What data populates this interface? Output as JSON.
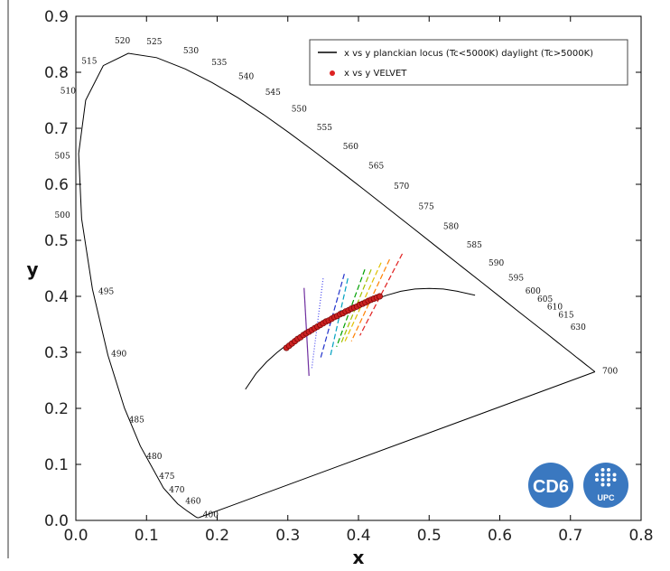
{
  "chart_data": {
    "type": "scatter",
    "xlabel": "x",
    "ylabel": "y",
    "xlim": [
      0.0,
      0.8
    ],
    "ylim": [
      0.0,
      0.9
    ],
    "x_ticks": [
      "0.0",
      "0.1",
      "0.2",
      "0.3",
      "0.4",
      "0.5",
      "0.6",
      "0.7",
      "0.8"
    ],
    "y_ticks": [
      "0.0",
      "0.1",
      "0.2",
      "0.3",
      "0.4",
      "0.5",
      "0.6",
      "0.7",
      "0.8",
      "0.9"
    ],
    "grid": false,
    "legend_position": "top-right",
    "series": [
      {
        "name": "x vs y planckian locus (Tc<5000K) daylight (Tc>5000K)",
        "style": "line",
        "color": "#000000",
        "x": [
          0.24,
          0.255,
          0.27,
          0.285,
          0.3,
          0.315,
          0.33,
          0.345,
          0.36,
          0.38,
          0.4,
          0.42,
          0.44,
          0.46,
          0.48,
          0.5,
          0.52,
          0.54,
          0.565
        ],
        "y": [
          0.234,
          0.262,
          0.283,
          0.3,
          0.315,
          0.328,
          0.34,
          0.351,
          0.361,
          0.372,
          0.383,
          0.393,
          0.402,
          0.409,
          0.413,
          0.414,
          0.413,
          0.409,
          0.402
        ]
      },
      {
        "name": "x vs y VELVET",
        "style": "scatter",
        "color": "#cc2222",
        "x": [
          0.298,
          0.302,
          0.306,
          0.31,
          0.314,
          0.318,
          0.322,
          0.326,
          0.33,
          0.334,
          0.338,
          0.342,
          0.346,
          0.35,
          0.354,
          0.358,
          0.362,
          0.366,
          0.37,
          0.374,
          0.378,
          0.382,
          0.386,
          0.39,
          0.394,
          0.398,
          0.402,
          0.406,
          0.41,
          0.414,
          0.418,
          0.422,
          0.426,
          0.43
        ],
        "y": [
          0.308,
          0.312,
          0.316,
          0.32,
          0.324,
          0.327,
          0.331,
          0.334,
          0.337,
          0.34,
          0.343,
          0.346,
          0.349,
          0.352,
          0.355,
          0.357,
          0.36,
          0.363,
          0.365,
          0.368,
          0.37,
          0.373,
          0.375,
          0.378,
          0.38,
          0.382,
          0.385,
          0.387,
          0.389,
          0.392,
          0.394,
          0.396,
          0.398,
          0.4
        ]
      }
    ],
    "spectral_locus": {
      "color": "#000000",
      "x": [
        0.1741,
        0.174,
        0.1738,
        0.1736,
        0.1733,
        0.1726,
        0.1714,
        0.1689,
        0.1644,
        0.1566,
        0.144,
        0.1241,
        0.0913,
        0.0687,
        0.0454,
        0.0235,
        0.0082,
        0.0039,
        0.0139,
        0.0389,
        0.0743,
        0.1142,
        0.1547,
        0.1929,
        0.2296,
        0.2658,
        0.3016,
        0.3373,
        0.3731,
        0.4087,
        0.4441,
        0.4788,
        0.5125,
        0.5448,
        0.5752,
        0.6029,
        0.627,
        0.6482,
        0.6658,
        0.6801,
        0.6915,
        0.7006,
        0.7079,
        0.714,
        0.719,
        0.723,
        0.726,
        0.7283,
        0.73,
        0.7347
      ],
      "y": [
        0.005,
        0.005,
        0.0049,
        0.0049,
        0.0048,
        0.0048,
        0.0051,
        0.0069,
        0.0109,
        0.0177,
        0.0297,
        0.0578,
        0.1327,
        0.2007,
        0.295,
        0.4127,
        0.5384,
        0.6548,
        0.7502,
        0.812,
        0.8338,
        0.8262,
        0.8059,
        0.7816,
        0.7543,
        0.7243,
        0.6923,
        0.6589,
        0.6245,
        0.5896,
        0.5547,
        0.5202,
        0.4866,
        0.4544,
        0.4242,
        0.3965,
        0.3725,
        0.3514,
        0.334,
        0.3197,
        0.3083,
        0.2993,
        0.292,
        0.2859,
        0.2809,
        0.277,
        0.274,
        0.2717,
        0.27,
        0.2653
      ]
    },
    "purple_line": {
      "x": [
        0.1741,
        0.7347
      ],
      "y": [
        0.005,
        0.2653
      ]
    },
    "wavelength_labels": [
      {
        "text": "400",
        "x": 0.18,
        "y": 0.006
      },
      {
        "text": "460",
        "x": 0.155,
        "y": 0.03
      },
      {
        "text": "470",
        "x": 0.132,
        "y": 0.05
      },
      {
        "text": "475",
        "x": 0.118,
        "y": 0.074
      },
      {
        "text": "480",
        "x": 0.1,
        "y": 0.11
      },
      {
        "text": "485",
        "x": 0.075,
        "y": 0.175
      },
      {
        "text": "490",
        "x": 0.05,
        "y": 0.293
      },
      {
        "text": "495",
        "x": 0.032,
        "y": 0.404
      },
      {
        "text": "500",
        "x": -0.03,
        "y": 0.54
      },
      {
        "text": "505",
        "x": -0.03,
        "y": 0.646
      },
      {
        "text": "510",
        "x": -0.022,
        "y": 0.762
      },
      {
        "text": "515",
        "x": 0.008,
        "y": 0.815
      },
      {
        "text": "520",
        "x": 0.055,
        "y": 0.852
      },
      {
        "text": "525",
        "x": 0.1,
        "y": 0.85
      },
      {
        "text": "530",
        "x": 0.152,
        "y": 0.834
      },
      {
        "text": "535",
        "x": 0.192,
        "y": 0.813
      },
      {
        "text": "540",
        "x": 0.23,
        "y": 0.788
      },
      {
        "text": "545",
        "x": 0.268,
        "y": 0.76
      },
      {
        "text": "550",
        "x": 0.305,
        "y": 0.73
      },
      {
        "text": "555",
        "x": 0.341,
        "y": 0.697
      },
      {
        "text": "560",
        "x": 0.378,
        "y": 0.663
      },
      {
        "text": "565",
        "x": 0.414,
        "y": 0.628
      },
      {
        "text": "570",
        "x": 0.45,
        "y": 0.592
      },
      {
        "text": "575",
        "x": 0.485,
        "y": 0.556
      },
      {
        "text": "580",
        "x": 0.52,
        "y": 0.52
      },
      {
        "text": "585",
        "x": 0.553,
        "y": 0.487
      },
      {
        "text": "590",
        "x": 0.584,
        "y": 0.455
      },
      {
        "text": "595",
        "x": 0.612,
        "y": 0.428
      },
      {
        "text": "600",
        "x": 0.636,
        "y": 0.405
      },
      {
        "text": "605",
        "x": 0.653,
        "y": 0.39
      },
      {
        "text": "610",
        "x": 0.667,
        "y": 0.377
      },
      {
        "text": "615",
        "x": 0.683,
        "y": 0.362
      },
      {
        "text": "630",
        "x": 0.7,
        "y": 0.34
      },
      {
        "text": "700",
        "x": 0.745,
        "y": 0.262
      }
    ],
    "isotemperature_lines": [
      {
        "color": "#7030a0",
        "dash": "",
        "x": [
          0.323,
          0.33
        ],
        "y": [
          0.415,
          0.258
        ]
      },
      {
        "color": "#4444ee",
        "dash": "1,2",
        "x": [
          0.35,
          0.334
        ],
        "y": [
          0.432,
          0.272
        ]
      },
      {
        "color": "#2233cc",
        "dash": "6,3",
        "x": [
          0.38,
          0.346
        ],
        "y": [
          0.44,
          0.288
        ]
      },
      {
        "color": "#00a0c0",
        "dash": "6,3",
        "x": [
          0.385,
          0.36
        ],
        "y": [
          0.432,
          0.292
        ]
      },
      {
        "color": "#00a000",
        "dash": "6,3",
        "x": [
          0.409,
          0.369
        ],
        "y": [
          0.448,
          0.31
        ]
      },
      {
        "color": "#a0c000",
        "dash": "6,3",
        "x": [
          0.418,
          0.376
        ],
        "y": [
          0.448,
          0.318
        ]
      },
      {
        "color": "#e0c000",
        "dash": "6,3",
        "x": [
          0.432,
          0.381
        ],
        "y": [
          0.46,
          0.32
        ]
      },
      {
        "color": "#ff8000",
        "dash": "6,3",
        "x": [
          0.444,
          0.39
        ],
        "y": [
          0.466,
          0.32
        ]
      },
      {
        "color": "#e02020",
        "dash": "6,3",
        "x": [
          0.462,
          0.402
        ],
        "y": [
          0.476,
          0.33
        ]
      }
    ],
    "logos": {
      "left": "CD6",
      "right": "UPC",
      "color": "#3a78c0"
    }
  }
}
